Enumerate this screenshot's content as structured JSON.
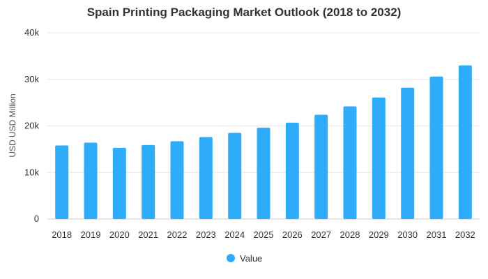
{
  "chart_data": {
    "type": "bar",
    "title": "Spain Printing Packaging Market Outlook (2018 to 2032)",
    "xlabel": "",
    "ylabel": "USD USD Million",
    "categories": [
      "2018",
      "2019",
      "2020",
      "2021",
      "2022",
      "2023",
      "2024",
      "2025",
      "2026",
      "2027",
      "2028",
      "2029",
      "2030",
      "2031",
      "2032"
    ],
    "series": [
      {
        "name": "Value",
        "values": [
          15800,
          16400,
          15300,
          15900,
          16700,
          17600,
          18500,
          19600,
          20700,
          22400,
          24200,
          26100,
          28200,
          30600,
          33000
        ]
      }
    ],
    "ylim": [
      0,
      40000
    ],
    "yticks": [
      0,
      10000,
      20000,
      30000,
      40000
    ],
    "ytick_labels": [
      "0",
      "10k",
      "20k",
      "30k",
      "40k"
    ],
    "grid": true,
    "legend_position": "bottom",
    "bar_color": "#2EACF9",
    "grid_color": "#e6e6e6"
  }
}
